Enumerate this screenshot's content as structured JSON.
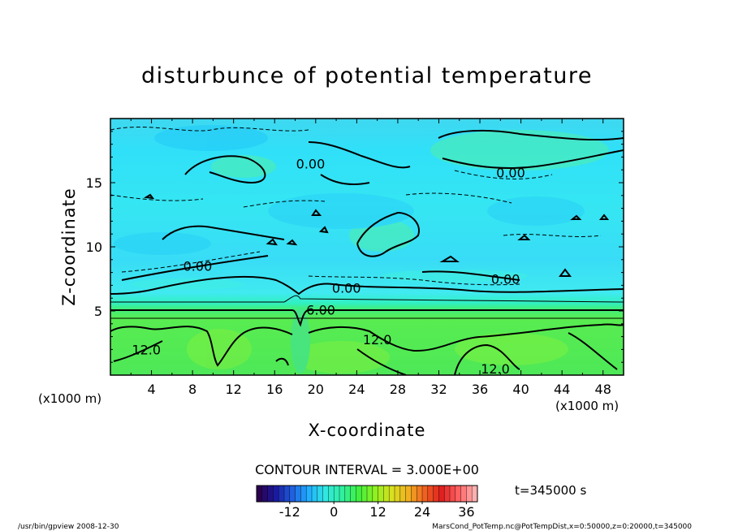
{
  "chart_data": {
    "type": "heatmap",
    "title": "disturbunce of potential temperature",
    "xlabel": "X-coordinate",
    "ylabel": "Z-coordinate",
    "x_unit": "(x1000 m)",
    "z_unit": "(x1000 m)",
    "xlim": [
      0,
      50
    ],
    "zlim": [
      0,
      20
    ],
    "x_ticks": [
      4,
      8,
      12,
      16,
      20,
      24,
      28,
      32,
      36,
      40,
      44,
      48
    ],
    "z_ticks": [
      5,
      10,
      15
    ],
    "contour_interval_text": "CONTOUR INTERVAL = 3.000E+00",
    "contour_labels": [
      {
        "text": "0.00",
        "x": 19.5,
        "z": 16.5
      },
      {
        "text": "0.00",
        "x": 39,
        "z": 15.8
      },
      {
        "text": "0.00",
        "x": 8.5,
        "z": 8.5
      },
      {
        "text": "0.00",
        "x": 23,
        "z": 6.8
      },
      {
        "text": "0.00",
        "x": 38.5,
        "z": 7.5
      },
      {
        "text": "6.00",
        "x": 20.5,
        "z": 5.1
      },
      {
        "text": "12.0",
        "x": 26,
        "z": 2.8
      },
      {
        "text": "12.0",
        "x": 3.5,
        "z": 2.0
      },
      {
        "text": "12.0",
        "x": 37.5,
        "z": 0.5
      }
    ],
    "fields": [
      {
        "layer": "upper",
        "z_range": [
          8,
          20
        ],
        "value_range": [
          -3,
          3
        ]
      },
      {
        "layer": "transition",
        "z_range": [
          5,
          8
        ],
        "value_range": [
          3,
          6
        ]
      },
      {
        "layer": "lower",
        "z_range": [
          0,
          5
        ],
        "value_range": [
          9,
          15
        ]
      }
    ],
    "colorbar": {
      "ticks": [
        -12,
        0,
        12,
        24,
        36
      ],
      "range": [
        -21,
        39
      ],
      "colors": [
        "#2a0050",
        "#1a1aa0",
        "#2060e0",
        "#20b0ff",
        "#30e8e0",
        "#30f0a0",
        "#40f040",
        "#90f020",
        "#d8e020",
        "#f0b020",
        "#f06020",
        "#e02020",
        "#ff6060",
        "#ffb0b0"
      ]
    },
    "time_label": "t=345000  s"
  },
  "footer": {
    "left": "/usr/bin/gpview   2008-12-30",
    "right": "MarsCond_PotTemp.nc@PotTempDist,x=0:50000,z=0:20000,t=345000"
  }
}
